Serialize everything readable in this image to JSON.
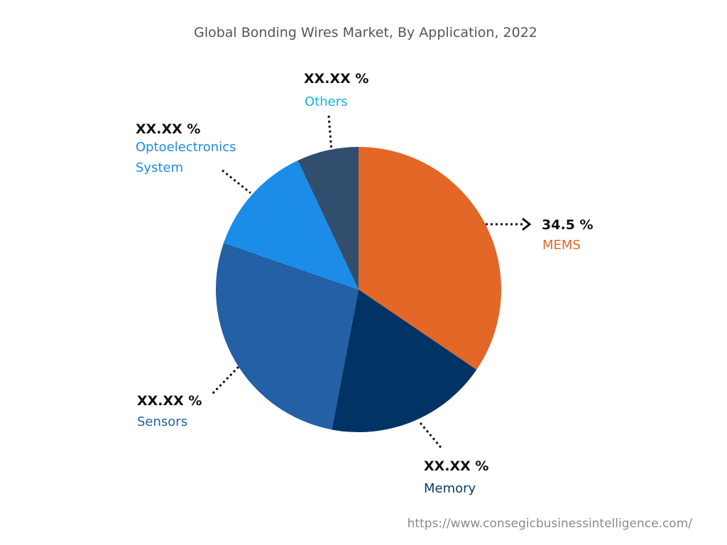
{
  "chart_data": {
    "type": "pie",
    "title": "Global Bonding Wires Market, By Application, 2022",
    "slices": [
      {
        "name": "MEMS",
        "value": 34.5,
        "label": "34.5 %",
        "color": "#E36727",
        "label_color": "#E36727"
      },
      {
        "name": "Memory",
        "value": 18.5,
        "label": "XX.XX %",
        "color": "#013365",
        "label_color": "#0D3B66"
      },
      {
        "name": "Sensors",
        "value": 27.3,
        "label": "XX.XX %",
        "color": "#2360A5",
        "label_color": "#2360A5"
      },
      {
        "name": "Optoelectronics System",
        "value": 12.7,
        "label": "XX.XX %",
        "color": "#1B8CE8",
        "label_color": "#1B8CE8"
      },
      {
        "name": "Others",
        "value": 7.0,
        "label": "XX.XX %",
        "color": "#324E6E",
        "label_color": "#14B5D7"
      }
    ],
    "start_angle": "12 o'clock",
    "direction": "clockwise"
  },
  "footer": {
    "url": "https://www.consegicbusinessintelligence.com/"
  }
}
